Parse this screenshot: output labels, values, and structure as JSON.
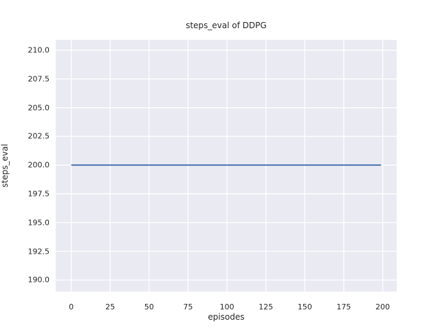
{
  "chart_data": {
    "type": "line",
    "title": "steps_eval of DDPG",
    "xlabel": "episodes",
    "ylabel": "steps_eval",
    "x_ticks": [
      0,
      25,
      50,
      75,
      100,
      125,
      150,
      175,
      200
    ],
    "x_tick_labels": [
      "0",
      "25",
      "50",
      "75",
      "100",
      "125",
      "150",
      "175",
      "200"
    ],
    "y_ticks": [
      190.0,
      192.5,
      195.0,
      197.5,
      200.0,
      202.5,
      205.0,
      207.5,
      210.0
    ],
    "y_tick_labels": [
      "190.0",
      "192.5",
      "195.0",
      "197.5",
      "200.0",
      "202.5",
      "205.0",
      "207.5",
      "210.0"
    ],
    "xlim": [
      -10.0,
      209.0
    ],
    "ylim": [
      189.0,
      210.9
    ],
    "grid": true,
    "legend": "none",
    "style": "seaborn-darkgrid",
    "series": [
      {
        "name": "DDPG",
        "x": [
          0,
          199
        ],
        "y": [
          200.0,
          200.0
        ],
        "color": "#4c72b0",
        "linewidth": 2
      }
    ],
    "colors": {
      "figure_bg": "#ffffff",
      "plot_bg": "#eaeaf2",
      "grid": "#ffffff",
      "text": "#262626",
      "line": "#4c72b0"
    }
  }
}
